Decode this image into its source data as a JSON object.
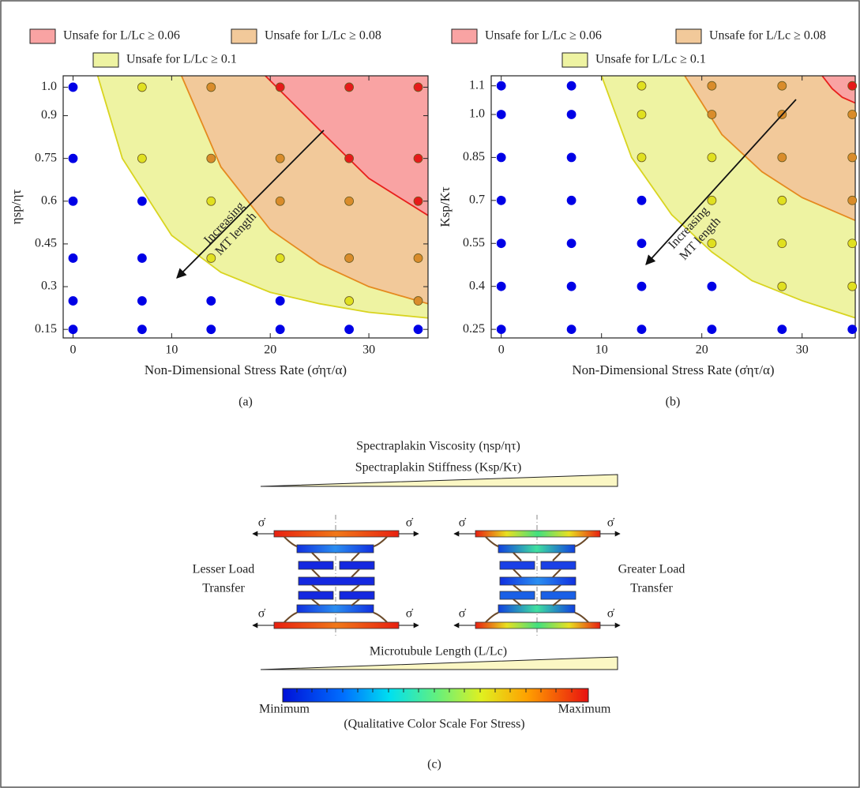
{
  "chart_data": [
    {
      "type": "scatter",
      "label": "(a)",
      "x_label": "Non-Dimensional Stress Rate (σ̇ητ/α)",
      "y_label": "ηsp/ητ",
      "annotation": [
        "Increasing",
        "MT length"
      ],
      "xlim": [
        -1,
        36
      ],
      "ylim": [
        0.12,
        1.04
      ],
      "xticks": [
        0,
        10,
        20,
        30
      ],
      "yticks": [
        0.15,
        0.3,
        0.45,
        0.6,
        0.75,
        0.9,
        {
          "value": 1,
          "label": "1.0"
        }
      ],
      "series": [
        {
          "name": "Unsafe for L/Lc ≥ 0.06",
          "color": "#f9a3a3",
          "line_color": "#e8201c",
          "x": [
            19.5,
            25,
            30,
            36
          ],
          "y": [
            1.04,
            0.85,
            0.68,
            0.55
          ]
        },
        {
          "name": "Unsafe for L/Lc ≥ 0.08",
          "color": "#f2c99a",
          "line_color": "#e58a1f",
          "x": [
            11,
            15,
            20,
            25,
            30,
            36
          ],
          "y": [
            1.04,
            0.72,
            0.5,
            0.38,
            0.3,
            0.24
          ]
        },
        {
          "name": "Unsafe for L/Lc ≥ 0.1",
          "color": "#eef3a2",
          "line_color": "#d9d420",
          "x": [
            2.5,
            5,
            10,
            15,
            20,
            25,
            30,
            36
          ],
          "y": [
            1.04,
            0.75,
            0.48,
            0.35,
            0.28,
            0.24,
            0.21,
            0.19
          ]
        }
      ],
      "points": {
        "x": [
          0,
          7,
          14,
          21,
          28,
          35,
          0,
          7,
          14,
          21,
          28,
          35,
          0,
          7,
          14,
          21,
          28,
          35,
          0,
          7,
          14,
          21,
          28,
          35,
          0,
          7,
          14,
          21,
          28,
          35,
          0,
          7,
          14,
          21,
          28,
          35
        ],
        "y": [
          1,
          1,
          1,
          1,
          1,
          1,
          0.75,
          0.75,
          0.75,
          0.75,
          0.75,
          0.75,
          0.6,
          0.6,
          0.6,
          0.6,
          0.6,
          0.6,
          0.4,
          0.4,
          0.4,
          0.4,
          0.4,
          0.4,
          0.25,
          0.25,
          0.25,
          0.25,
          0.25,
          0.25,
          0.15,
          0.15,
          0.15,
          0.15,
          0.15,
          0.15
        ],
        "colors": [
          "#0000e6",
          "#e0e020",
          "#d98c2b",
          "#e61a1a",
          "#e61a1a",
          "#e61a1a",
          "#0000e6",
          "#e0e020",
          "#d98c2b",
          "#d98c2b",
          "#e61a1a",
          "#e61a1a",
          "#0000e6",
          "#0000e6",
          "#e0e020",
          "#d98c2b",
          "#d98c2b",
          "#e61a1a",
          "#0000e6",
          "#0000e6",
          "#e0e020",
          "#e0e020",
          "#d98c2b",
          "#d98c2b",
          "#0000e6",
          "#0000e6",
          "#0000e6",
          "#0000e6",
          "#e0e020",
          "#d98c2b",
          "#0000e6",
          "#0000e6",
          "#0000e6",
          "#0000e6",
          "#0000e6",
          "#0000e6"
        ]
      }
    },
    {
      "type": "scatter",
      "label": "(b)",
      "x_label": "Non-Dimensional Stress Rate (σ̇ητ/α)",
      "y_label": "Ksp/Kτ",
      "annotation": [
        "Increasing",
        "MT length"
      ],
      "xlim": [
        -1,
        35.3
      ],
      "ylim": [
        0.22,
        1.135
      ],
      "xticks": [
        0,
        10,
        20,
        30
      ],
      "yticks": [
        0.25,
        0.4,
        0.55,
        0.7,
        0.85,
        {
          "value": 1,
          "label": "1.0"
        },
        1.1
      ],
      "series": [
        {
          "name": "Unsafe for L/Lc ≥ 0.06",
          "color": "#f9a3a3",
          "line_color": "#e8201c",
          "x": [
            32,
            33,
            34,
            35.3
          ],
          "y": [
            1.135,
            1.09,
            1.06,
            1.04
          ]
        },
        {
          "name": "Unsafe for L/Lc ≥ 0.08",
          "color": "#f2c99a",
          "line_color": "#e58a1f",
          "x": [
            18.3,
            22,
            26,
            30,
            35.3
          ],
          "y": [
            1.135,
            0.93,
            0.8,
            0.71,
            0.63
          ]
        },
        {
          "name": "Unsafe for L/Lc ≥ 0.1",
          "color": "#eef3a2",
          "line_color": "#d9d420",
          "x": [
            10,
            13,
            17,
            21,
            25,
            30,
            35.3
          ],
          "y": [
            1.135,
            0.85,
            0.65,
            0.52,
            0.42,
            0.35,
            0.29
          ]
        }
      ],
      "points": {
        "x": [
          0,
          7,
          14,
          21,
          28,
          35,
          0,
          7,
          14,
          21,
          28,
          35,
          0,
          7,
          14,
          21,
          28,
          35,
          0,
          7,
          14,
          21,
          28,
          35,
          0,
          7,
          14,
          21,
          28,
          35,
          0,
          7,
          14,
          21,
          28,
          35,
          0,
          7,
          14,
          21,
          28,
          35
        ],
        "y": [
          1.1,
          1.1,
          1.1,
          1.1,
          1.1,
          1.1,
          1,
          1,
          1,
          1,
          1,
          1,
          0.85,
          0.85,
          0.85,
          0.85,
          0.85,
          0.85,
          0.7,
          0.7,
          0.7,
          0.7,
          0.7,
          0.7,
          0.55,
          0.55,
          0.55,
          0.55,
          0.55,
          0.55,
          0.4,
          0.4,
          0.4,
          0.4,
          0.4,
          0.4,
          0.25,
          0.25,
          0.25,
          0.25,
          0.25,
          0.25
        ],
        "colors": [
          "#0000e6",
          "#0000e6",
          "#e0e020",
          "#d98c2b",
          "#d98c2b",
          "#e61a1a",
          "#0000e6",
          "#0000e6",
          "#e0e020",
          "#d98c2b",
          "#d98c2b",
          "#d98c2b",
          "#0000e6",
          "#0000e6",
          "#e0e020",
          "#e0e020",
          "#d98c2b",
          "#d98c2b",
          "#0000e6",
          "#0000e6",
          "#0000e6",
          "#e0e020",
          "#e0e020",
          "#d98c2b",
          "#0000e6",
          "#0000e6",
          "#0000e6",
          "#e0e020",
          "#e0e020",
          "#e0e020",
          "#0000e6",
          "#0000e6",
          "#0000e6",
          "#0000e6",
          "#e0e020",
          "#e0e020",
          "#0000e6",
          "#0000e6",
          "#0000e6",
          "#0000e6",
          "#0000e6",
          "#0000e6"
        ]
      }
    }
  ],
  "diagram": {
    "label": "(c)",
    "top_wedge": [
      "Spectraplakin Viscosity (ηsp/ητ)",
      "Spectraplakin Stiffness (Ksp/Kτ)"
    ],
    "left_text": [
      "Lesser Load",
      "Transfer"
    ],
    "right_text": [
      "Greater Load",
      "Transfer"
    ],
    "stress_symbol": "σ̇",
    "bottom_wedge": "Microtubule Length (L/Lc)",
    "scale_min": "Minimum",
    "scale_max": "Maximum",
    "scale_caption": "(Qualitative Color Scale For Stress)"
  }
}
